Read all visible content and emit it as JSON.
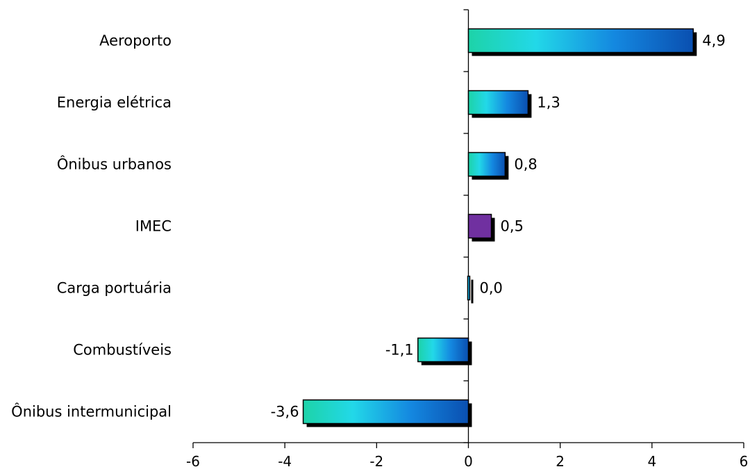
{
  "chart_data": {
    "type": "bar",
    "orientation": "horizontal",
    "categories": [
      "Aeroporto",
      "Energia elétrica",
      "Ônibus urbanos",
      "IMEC",
      "Carga portuária",
      "Combustíveis",
      "Ônibus intermunicipal"
    ],
    "values": [
      4.9,
      1.3,
      0.8,
      0.5,
      0.0,
      -1.1,
      -3.6
    ],
    "value_labels": [
      "4,9",
      "1,3",
      "0,8",
      "0,5",
      "0,0",
      "-1,1",
      "-3,6"
    ],
    "highlight_category": "IMEC",
    "xlim": [
      -6,
      6
    ],
    "xticks": [
      -6,
      -4,
      -2,
      0,
      2,
      4,
      6
    ],
    "xtick_labels": [
      "-6",
      "-4",
      "-2",
      "0",
      "2",
      "4",
      "6"
    ],
    "title": "",
    "xlabel": "",
    "ylabel": "",
    "grid": false,
    "legend": "none",
    "colors": {
      "gradient_start": "#1dd3a8",
      "gradient_mid": "#22d8e8",
      "gradient_end": "#0a4fb0",
      "highlight": "#7030a0",
      "shadow": "#000000",
      "axis": "#000000"
    }
  }
}
